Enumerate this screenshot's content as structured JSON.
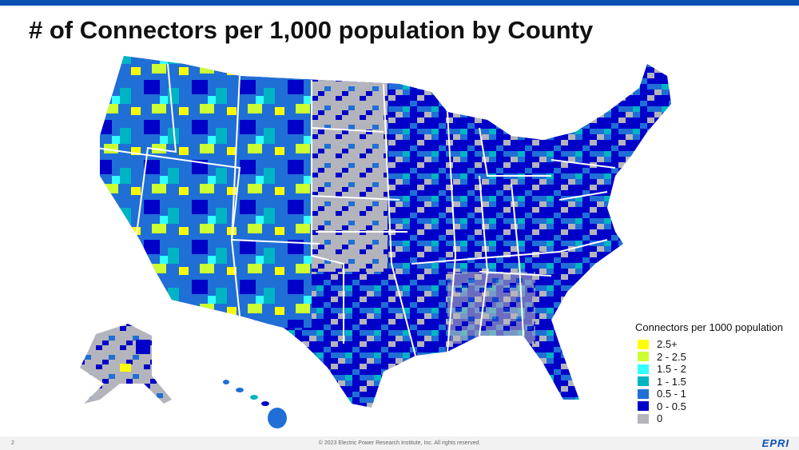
{
  "title": "# of Connectors per 1,000 population by County",
  "legend": {
    "title": "Connectors per 1000 population",
    "items": [
      {
        "label": "2.5+",
        "color": "#ffff00"
      },
      {
        "label": "2 - 2.5",
        "color": "#ccff33"
      },
      {
        "label": "1.5 - 2",
        "color": "#33ffff"
      },
      {
        "label": "1 - 1.5",
        "color": "#00b4c4"
      },
      {
        "label": "0.5 - 1",
        "color": "#1f6fd6"
      },
      {
        "label": "0 - 0.5",
        "color": "#0000c8"
      },
      {
        "label": "0",
        "color": "#b4b4bc"
      }
    ]
  },
  "footer": {
    "page": "2",
    "copyright": "© 2023 Electric Power Research Institute, Inc. All rights reserved.",
    "logo": "EPRI"
  }
}
